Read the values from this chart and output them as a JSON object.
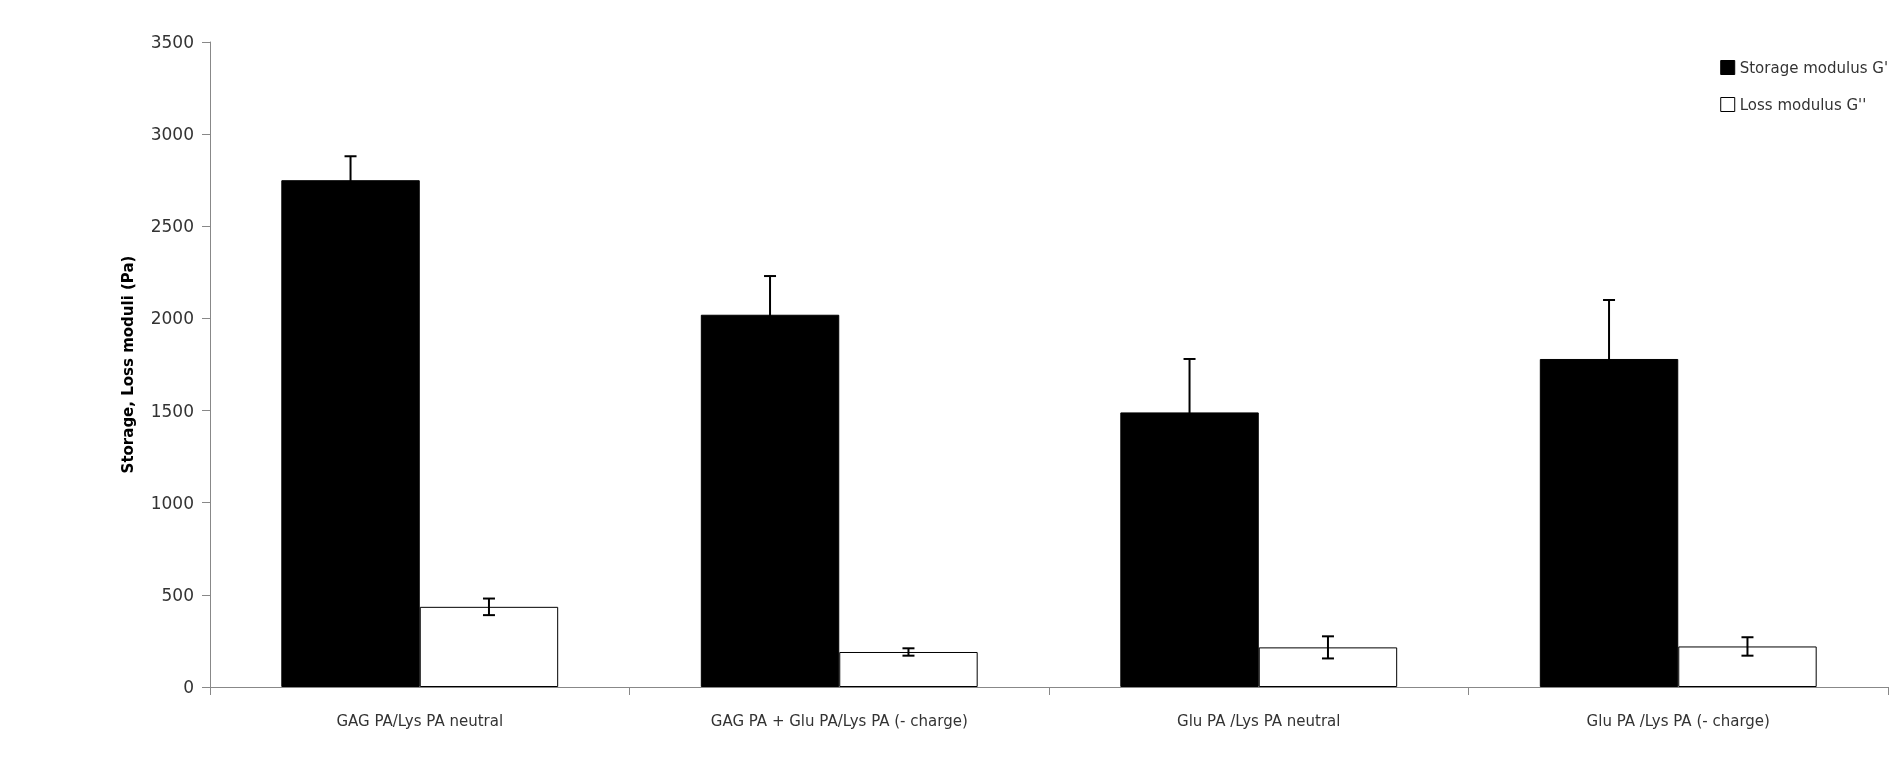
{
  "chart_data": {
    "type": "bar",
    "ylabel": "Storage, Loss moduli (Pa)",
    "categories": [
      "GAG PA/Lys PA neutral",
      "GAG PA + Glu PA/Lys PA (- charge)",
      "Glu PA /Lys PA neutral",
      "Glu PA /Lys PA (- charge)"
    ],
    "series": [
      {
        "name": "Storage modulus G'",
        "color": "#000000",
        "values": [
          2750,
          2020,
          1490,
          1780
        ],
        "errors": [
          130,
          210,
          290,
          320
        ]
      },
      {
        "name": "Loss modulus G''",
        "color": "#ffffff",
        "values": [
          435,
          190,
          215,
          220
        ],
        "errors": [
          45,
          20,
          60,
          50
        ]
      }
    ],
    "ylim": [
      0,
      3500
    ],
    "yticks": [
      0,
      500,
      1000,
      1500,
      2000,
      2500,
      3000,
      3500
    ],
    "grid": false,
    "legend": "top right"
  }
}
